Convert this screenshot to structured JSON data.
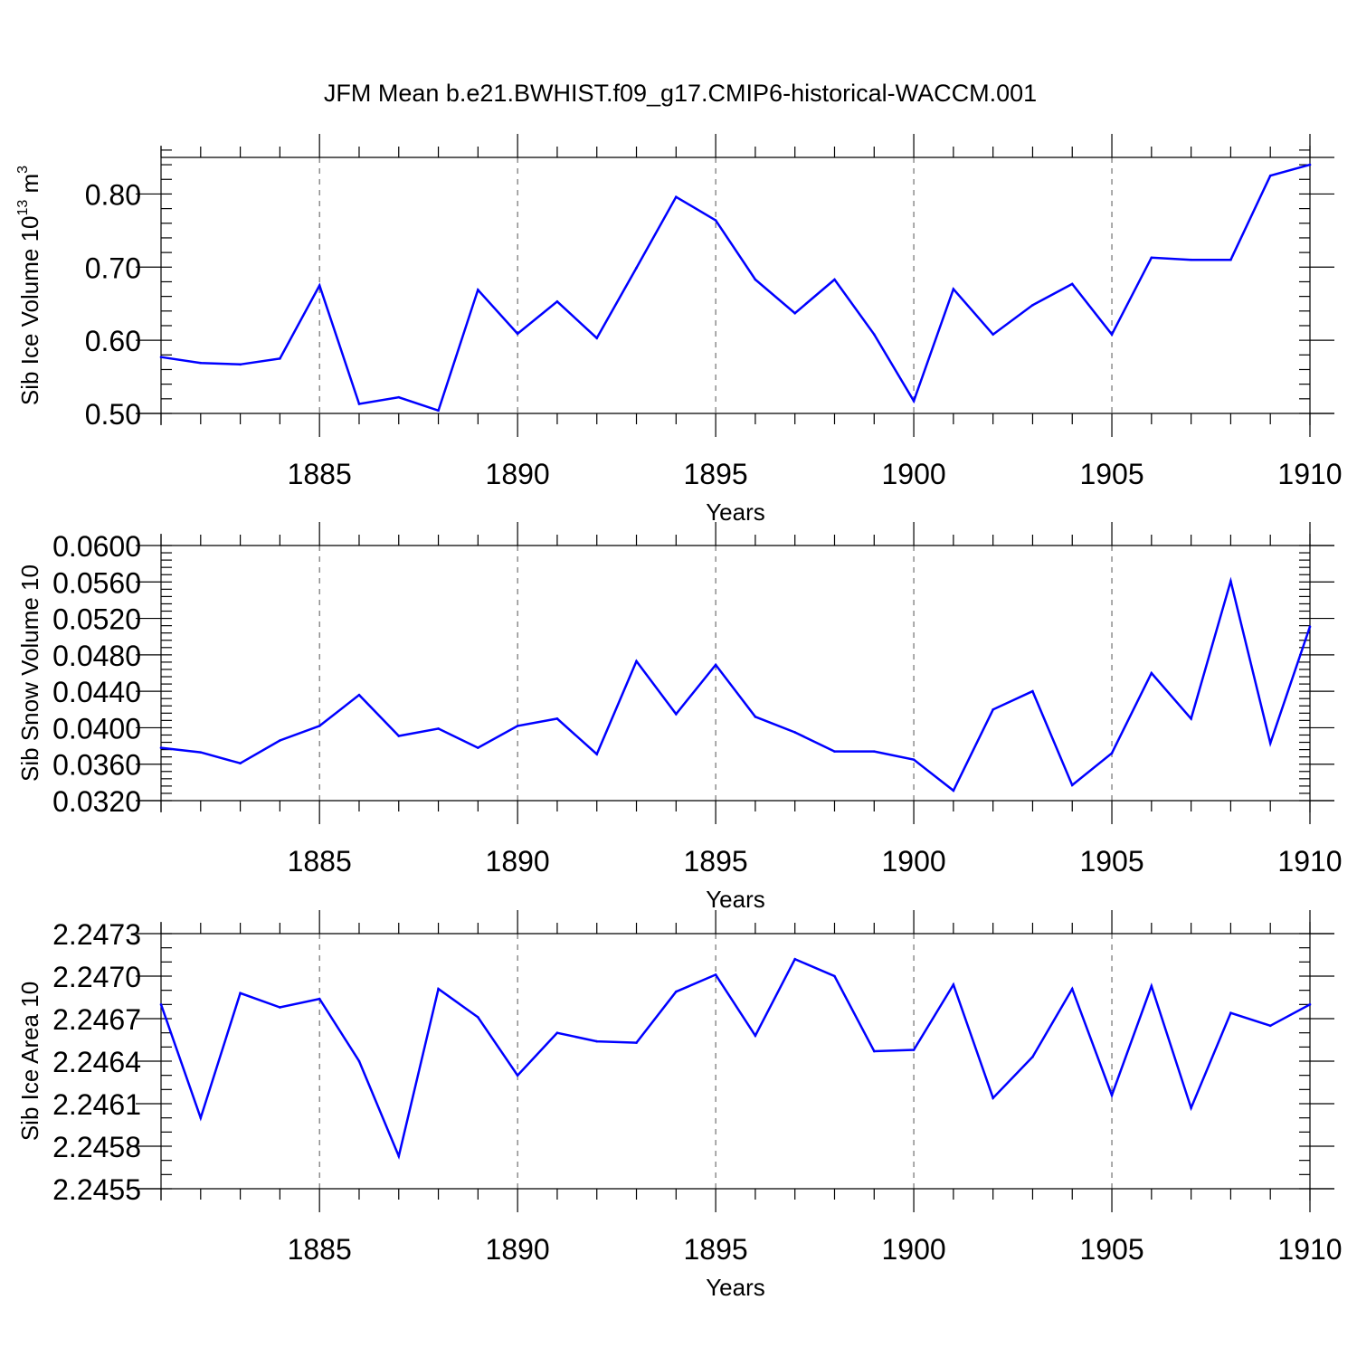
{
  "chart_data": [
    {
      "type": "line",
      "title": "JFM Mean b.e21.BWHIST.f09_g17.CMIP6-historical-WACCM.001",
      "xlabel": "Years",
      "ylabel": "Sib Ice Volume 10",
      "ylabel_sup1": "13",
      "ylabel_unit": " m",
      "ylabel_sup2": "3",
      "xlim": [
        1881,
        1910
      ],
      "ylim": [
        0.5,
        0.85
      ],
      "x_ticks": [
        1885,
        1890,
        1895,
        1900,
        1905,
        1910
      ],
      "x_tick_labels": [
        "1885",
        "1890",
        "1895",
        "1900",
        "1905",
        "1910"
      ],
      "y_ticks": [
        0.5,
        0.6,
        0.7,
        0.8
      ],
      "y_tick_labels": [
        "0.50",
        "0.60",
        "0.70",
        "0.80"
      ],
      "y_minor_step": 0.02,
      "grid": "vertical-dashed",
      "color": "#0000ff",
      "x": [
        1881,
        1882,
        1883,
        1884,
        1885,
        1886,
        1887,
        1888,
        1889,
        1890,
        1891,
        1892,
        1893,
        1894,
        1895,
        1896,
        1897,
        1898,
        1899,
        1900,
        1901,
        1902,
        1903,
        1904,
        1905,
        1906,
        1907,
        1908,
        1909,
        1910
      ],
      "values": [
        0.577,
        0.569,
        0.567,
        0.575,
        0.675,
        0.513,
        0.522,
        0.504,
        0.669,
        0.609,
        0.653,
        0.603,
        0.699,
        0.796,
        0.764,
        0.683,
        0.637,
        0.683,
        0.608,
        0.517,
        0.67,
        0.608,
        0.648,
        0.677,
        0.608,
        0.713,
        0.71,
        0.71,
        0.825,
        0.84
      ]
    },
    {
      "type": "line",
      "xlabel": "Years",
      "ylabel": "Sib Snow Volume 10",
      "xlim": [
        1881,
        1910
      ],
      "ylim": [
        0.032,
        0.06
      ],
      "x_ticks": [
        1885,
        1890,
        1895,
        1900,
        1905,
        1910
      ],
      "x_tick_labels": [
        "1885",
        "1890",
        "1895",
        "1900",
        "1905",
        "1910"
      ],
      "y_ticks": [
        0.032,
        0.036,
        0.04,
        0.044,
        0.048,
        0.052,
        0.056,
        0.06
      ],
      "y_tick_labels": [
        "0.0320",
        "0.0360",
        "0.0400",
        "0.0440",
        "0.0480",
        "0.0520",
        "0.0560",
        "0.0600"
      ],
      "y_minor_step": 0.0008,
      "grid": "vertical-dashed",
      "color": "#0000ff",
      "x": [
        1881,
        1882,
        1883,
        1884,
        1885,
        1886,
        1887,
        1888,
        1889,
        1890,
        1891,
        1892,
        1893,
        1894,
        1895,
        1896,
        1897,
        1898,
        1899,
        1900,
        1901,
        1902,
        1903,
        1904,
        1905,
        1906,
        1907,
        1908,
        1909,
        1910
      ],
      "values": [
        0.0378,
        0.0373,
        0.0361,
        0.0386,
        0.0402,
        0.0436,
        0.0391,
        0.0399,
        0.0378,
        0.0402,
        0.041,
        0.0371,
        0.0473,
        0.0415,
        0.0469,
        0.0412,
        0.0395,
        0.0374,
        0.0374,
        0.0365,
        0.0331,
        0.042,
        0.044,
        0.0337,
        0.0372,
        0.046,
        0.041,
        0.0561,
        0.0383,
        0.0511
      ]
    },
    {
      "type": "line",
      "xlabel": "Years",
      "ylabel": "Sib Ice Area 10",
      "xlim": [
        1881,
        1910
      ],
      "ylim": [
        2.2455,
        2.2473
      ],
      "x_ticks": [
        1885,
        1890,
        1895,
        1900,
        1905,
        1910
      ],
      "x_tick_labels": [
        "1885",
        "1890",
        "1895",
        "1900",
        "1905",
        "1910"
      ],
      "y_ticks": [
        2.2455,
        2.2458,
        2.2461,
        2.2464,
        2.2467,
        2.247,
        2.2473
      ],
      "y_tick_labels": [
        "2.2455",
        "2.2458",
        "2.2461",
        "2.2464",
        "2.2467",
        "2.2470",
        "2.2473"
      ],
      "y_minor_step": 0.0001,
      "grid": "vertical-dashed",
      "color": "#0000ff",
      "x": [
        1881,
        1882,
        1883,
        1884,
        1885,
        1886,
        1887,
        1888,
        1889,
        1890,
        1891,
        1892,
        1893,
        1894,
        1895,
        1896,
        1897,
        1898,
        1899,
        1900,
        1901,
        1902,
        1903,
        1904,
        1905,
        1906,
        1907,
        1908,
        1909,
        1910
      ],
      "values": [
        2.2468,
        2.246,
        2.24688,
        2.24678,
        2.24684,
        2.2464,
        2.24573,
        2.24691,
        2.24671,
        2.2463,
        2.2466,
        2.24654,
        2.24653,
        2.24689,
        2.24701,
        2.24658,
        2.24712,
        2.247,
        2.24647,
        2.24648,
        2.24694,
        2.24614,
        2.24643,
        2.24691,
        2.24616,
        2.24693,
        2.24607,
        2.24674,
        2.24665,
        2.2468
      ]
    }
  ]
}
